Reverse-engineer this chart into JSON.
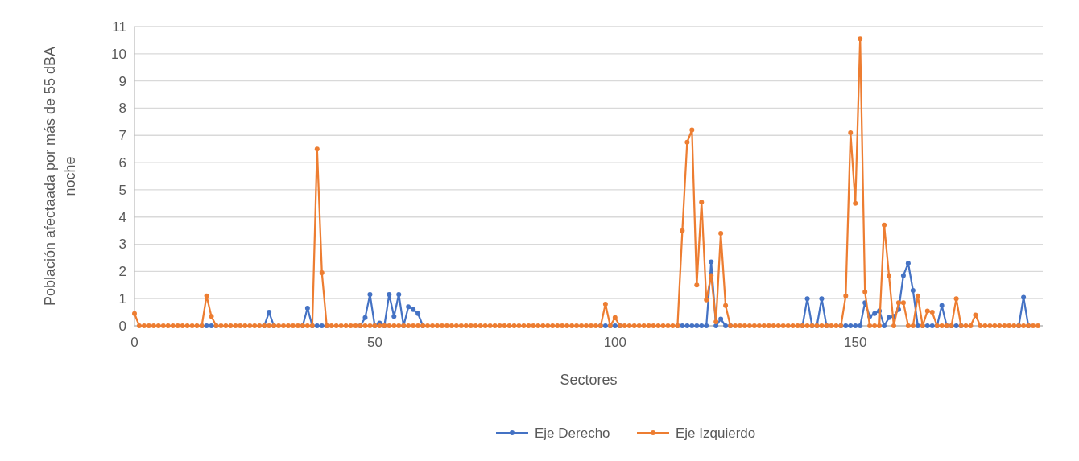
{
  "chart_data": {
    "type": "line",
    "xlabel": "Sectores",
    "ylabel": "Población afectaada por más de 55 dBA noche",
    "x": [
      0,
      1,
      2,
      3,
      4,
      5,
      6,
      7,
      8,
      9,
      10,
      11,
      12,
      13,
      14,
      15,
      16,
      17,
      18,
      19,
      20,
      21,
      22,
      23,
      24,
      25,
      26,
      27,
      28,
      29,
      30,
      31,
      32,
      33,
      34,
      35,
      36,
      37,
      38,
      39,
      40,
      41,
      42,
      43,
      44,
      45,
      46,
      47,
      48,
      49,
      50,
      51,
      52,
      53,
      54,
      55,
      56,
      57,
      58,
      59,
      60,
      61,
      62,
      63,
      64,
      65,
      66,
      67,
      68,
      69,
      70,
      71,
      72,
      73,
      74,
      75,
      76,
      77,
      78,
      79,
      80,
      81,
      82,
      83,
      84,
      85,
      86,
      87,
      88,
      89,
      90,
      91,
      92,
      93,
      94,
      95,
      96,
      97,
      98,
      99,
      100,
      101,
      102,
      103,
      104,
      105,
      106,
      107,
      108,
      109,
      110,
      111,
      112,
      113,
      114,
      115,
      116,
      117,
      118,
      119,
      120,
      121,
      122,
      123,
      124,
      125,
      126,
      127,
      128,
      129,
      130,
      131,
      132,
      133,
      134,
      135,
      136,
      137,
      138,
      139,
      140,
      141,
      142,
      143,
      144,
      145,
      146,
      147,
      148,
      149,
      150,
      151,
      152,
      153,
      154,
      155,
      156,
      157,
      158,
      159,
      160,
      161,
      162,
      163,
      164,
      165,
      166,
      167,
      168,
      169,
      170,
      171,
      172,
      173,
      174,
      175,
      176,
      177,
      178,
      179,
      180,
      181,
      182,
      183,
      184,
      185,
      186,
      187,
      188
    ],
    "xlim": [
      0,
      189
    ],
    "xticks": [
      0,
      50,
      100,
      150
    ],
    "ylim": [
      0,
      11
    ],
    "yticks": [
      0,
      1,
      2,
      3,
      4,
      5,
      6,
      7,
      8,
      9,
      10,
      11
    ],
    "grid": "y",
    "legend": "bottom",
    "marker": "circle",
    "line_style": "solid",
    "series": [
      {
        "name": "Eje Derecho",
        "color": "#4472c4",
        "values": [
          null,
          null,
          null,
          null,
          null,
          null,
          null,
          null,
          null,
          null,
          null,
          null,
          null,
          null,
          0,
          0,
          0,
          0,
          null,
          null,
          null,
          null,
          null,
          null,
          null,
          null,
          null,
          0,
          0.5,
          0,
          null,
          null,
          null,
          null,
          null,
          0,
          0.65,
          0,
          0,
          0,
          0,
          null,
          null,
          null,
          null,
          null,
          null,
          0,
          0.3,
          1.15,
          0,
          0.1,
          0,
          1.15,
          0.35,
          1.15,
          0,
          0.7,
          0.6,
          0.45,
          0,
          null,
          null,
          null,
          null,
          null,
          null,
          null,
          null,
          null,
          null,
          null,
          null,
          null,
          null,
          null,
          null,
          null,
          null,
          null,
          null,
          null,
          null,
          null,
          null,
          null,
          null,
          null,
          null,
          null,
          null,
          null,
          null,
          null,
          null,
          null,
          null,
          0,
          0,
          0,
          0,
          0,
          null,
          null,
          null,
          null,
          null,
          null,
          null,
          null,
          null,
          null,
          null,
          0,
          0,
          0,
          0,
          0,
          0,
          0,
          2.35,
          0,
          0.25,
          0,
          0,
          null,
          null,
          null,
          null,
          null,
          null,
          null,
          null,
          null,
          null,
          null,
          null,
          null,
          null,
          0,
          1,
          0,
          0,
          1,
          0,
          null,
          null,
          0,
          0,
          0,
          0,
          0,
          0.85,
          0.35,
          0.45,
          0.55,
          0,
          0.3,
          0.35,
          0.6,
          1.85,
          2.3,
          1.3,
          0,
          0,
          0,
          0,
          0,
          0.75,
          0,
          0,
          0,
          0,
          null,
          null,
          null,
          null,
          null,
          null,
          null,
          null,
          null,
          null,
          null,
          0,
          1.05,
          0,
          null,
          null
        ]
      },
      {
        "name": "Eje Izquierdo",
        "color": "#ed7d31",
        "values": [
          0.45,
          0,
          0,
          0,
          0,
          0,
          0,
          0,
          0,
          0,
          0,
          0,
          0,
          0,
          0,
          1.1,
          0.35,
          0,
          0,
          0,
          0,
          0,
          0,
          0,
          0,
          0,
          0,
          0,
          0,
          0,
          0,
          0,
          0,
          0,
          0,
          0,
          0,
          0,
          6.5,
          1.95,
          0,
          0,
          0,
          0,
          0,
          0,
          0,
          0,
          0,
          0,
          0,
          0,
          0,
          0,
          0,
          0,
          0,
          0,
          0,
          0,
          0,
          0,
          0,
          0,
          0,
          0,
          0,
          0,
          0,
          0,
          0,
          0,
          0,
          0,
          0,
          0,
          0,
          0,
          0,
          0,
          0,
          0,
          0,
          0,
          0,
          0,
          0,
          0,
          0,
          0,
          0,
          0,
          0,
          0,
          0,
          0,
          0,
          0,
          0.8,
          0,
          0.3,
          0,
          0,
          0,
          0,
          0,
          0,
          0,
          0,
          0,
          0,
          0,
          0,
          0,
          3.5,
          6.75,
          7.2,
          1.5,
          4.55,
          0.95,
          1.85,
          0.15,
          3.4,
          0.75,
          0,
          0,
          0,
          0,
          0,
          0,
          0,
          0,
          0,
          0,
          0,
          0,
          0,
          0,
          0,
          0,
          0,
          0,
          0,
          0,
          0,
          0,
          0,
          0,
          1.1,
          7.1,
          4.5,
          10.55,
          1.25,
          0,
          0,
          0,
          3.7,
          1.85,
          0,
          0.85,
          0.85,
          0,
          0,
          1.1,
          0,
          0.55,
          0.5,
          0,
          0,
          0,
          0,
          1,
          0,
          0,
          0,
          0.4,
          0,
          0,
          0,
          0,
          0,
          0,
          0,
          0,
          0,
          0,
          0,
          0,
          0
        ]
      }
    ]
  }
}
